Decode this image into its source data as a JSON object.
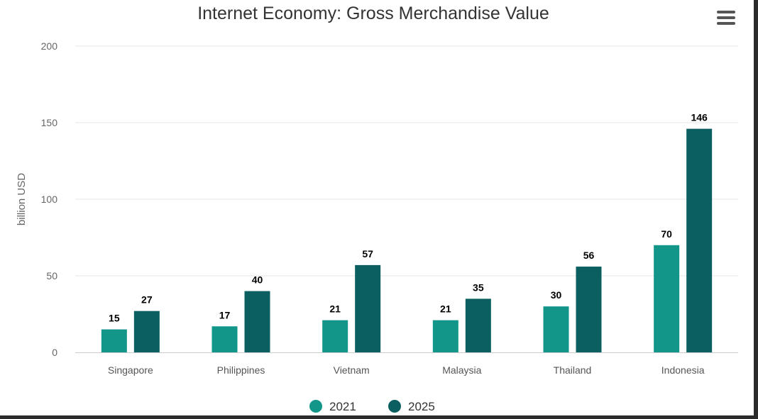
{
  "chart_data": {
    "type": "bar",
    "title": "Internet Economy: Gross Merchandise Value",
    "ylabel": "billion USD",
    "xlabel": "",
    "ylim": [
      0,
      200
    ],
    "yticks": [
      0,
      50,
      100,
      150,
      200
    ],
    "categories": [
      "Singapore",
      "Philippines",
      "Vietnam",
      "Malaysia",
      "Thailand",
      "Indonesia"
    ],
    "series": [
      {
        "name": "2021",
        "color": "#12968a",
        "values": [
          15,
          17,
          21,
          21,
          30,
          70
        ]
      },
      {
        "name": "2025",
        "color": "#0c5f60",
        "values": [
          27,
          40,
          57,
          35,
          56,
          146
        ]
      }
    ],
    "grid": true,
    "legend": "bottom-center",
    "data_labels": true
  },
  "toolbar": {
    "menu_icon": "hamburger-menu-icon"
  }
}
